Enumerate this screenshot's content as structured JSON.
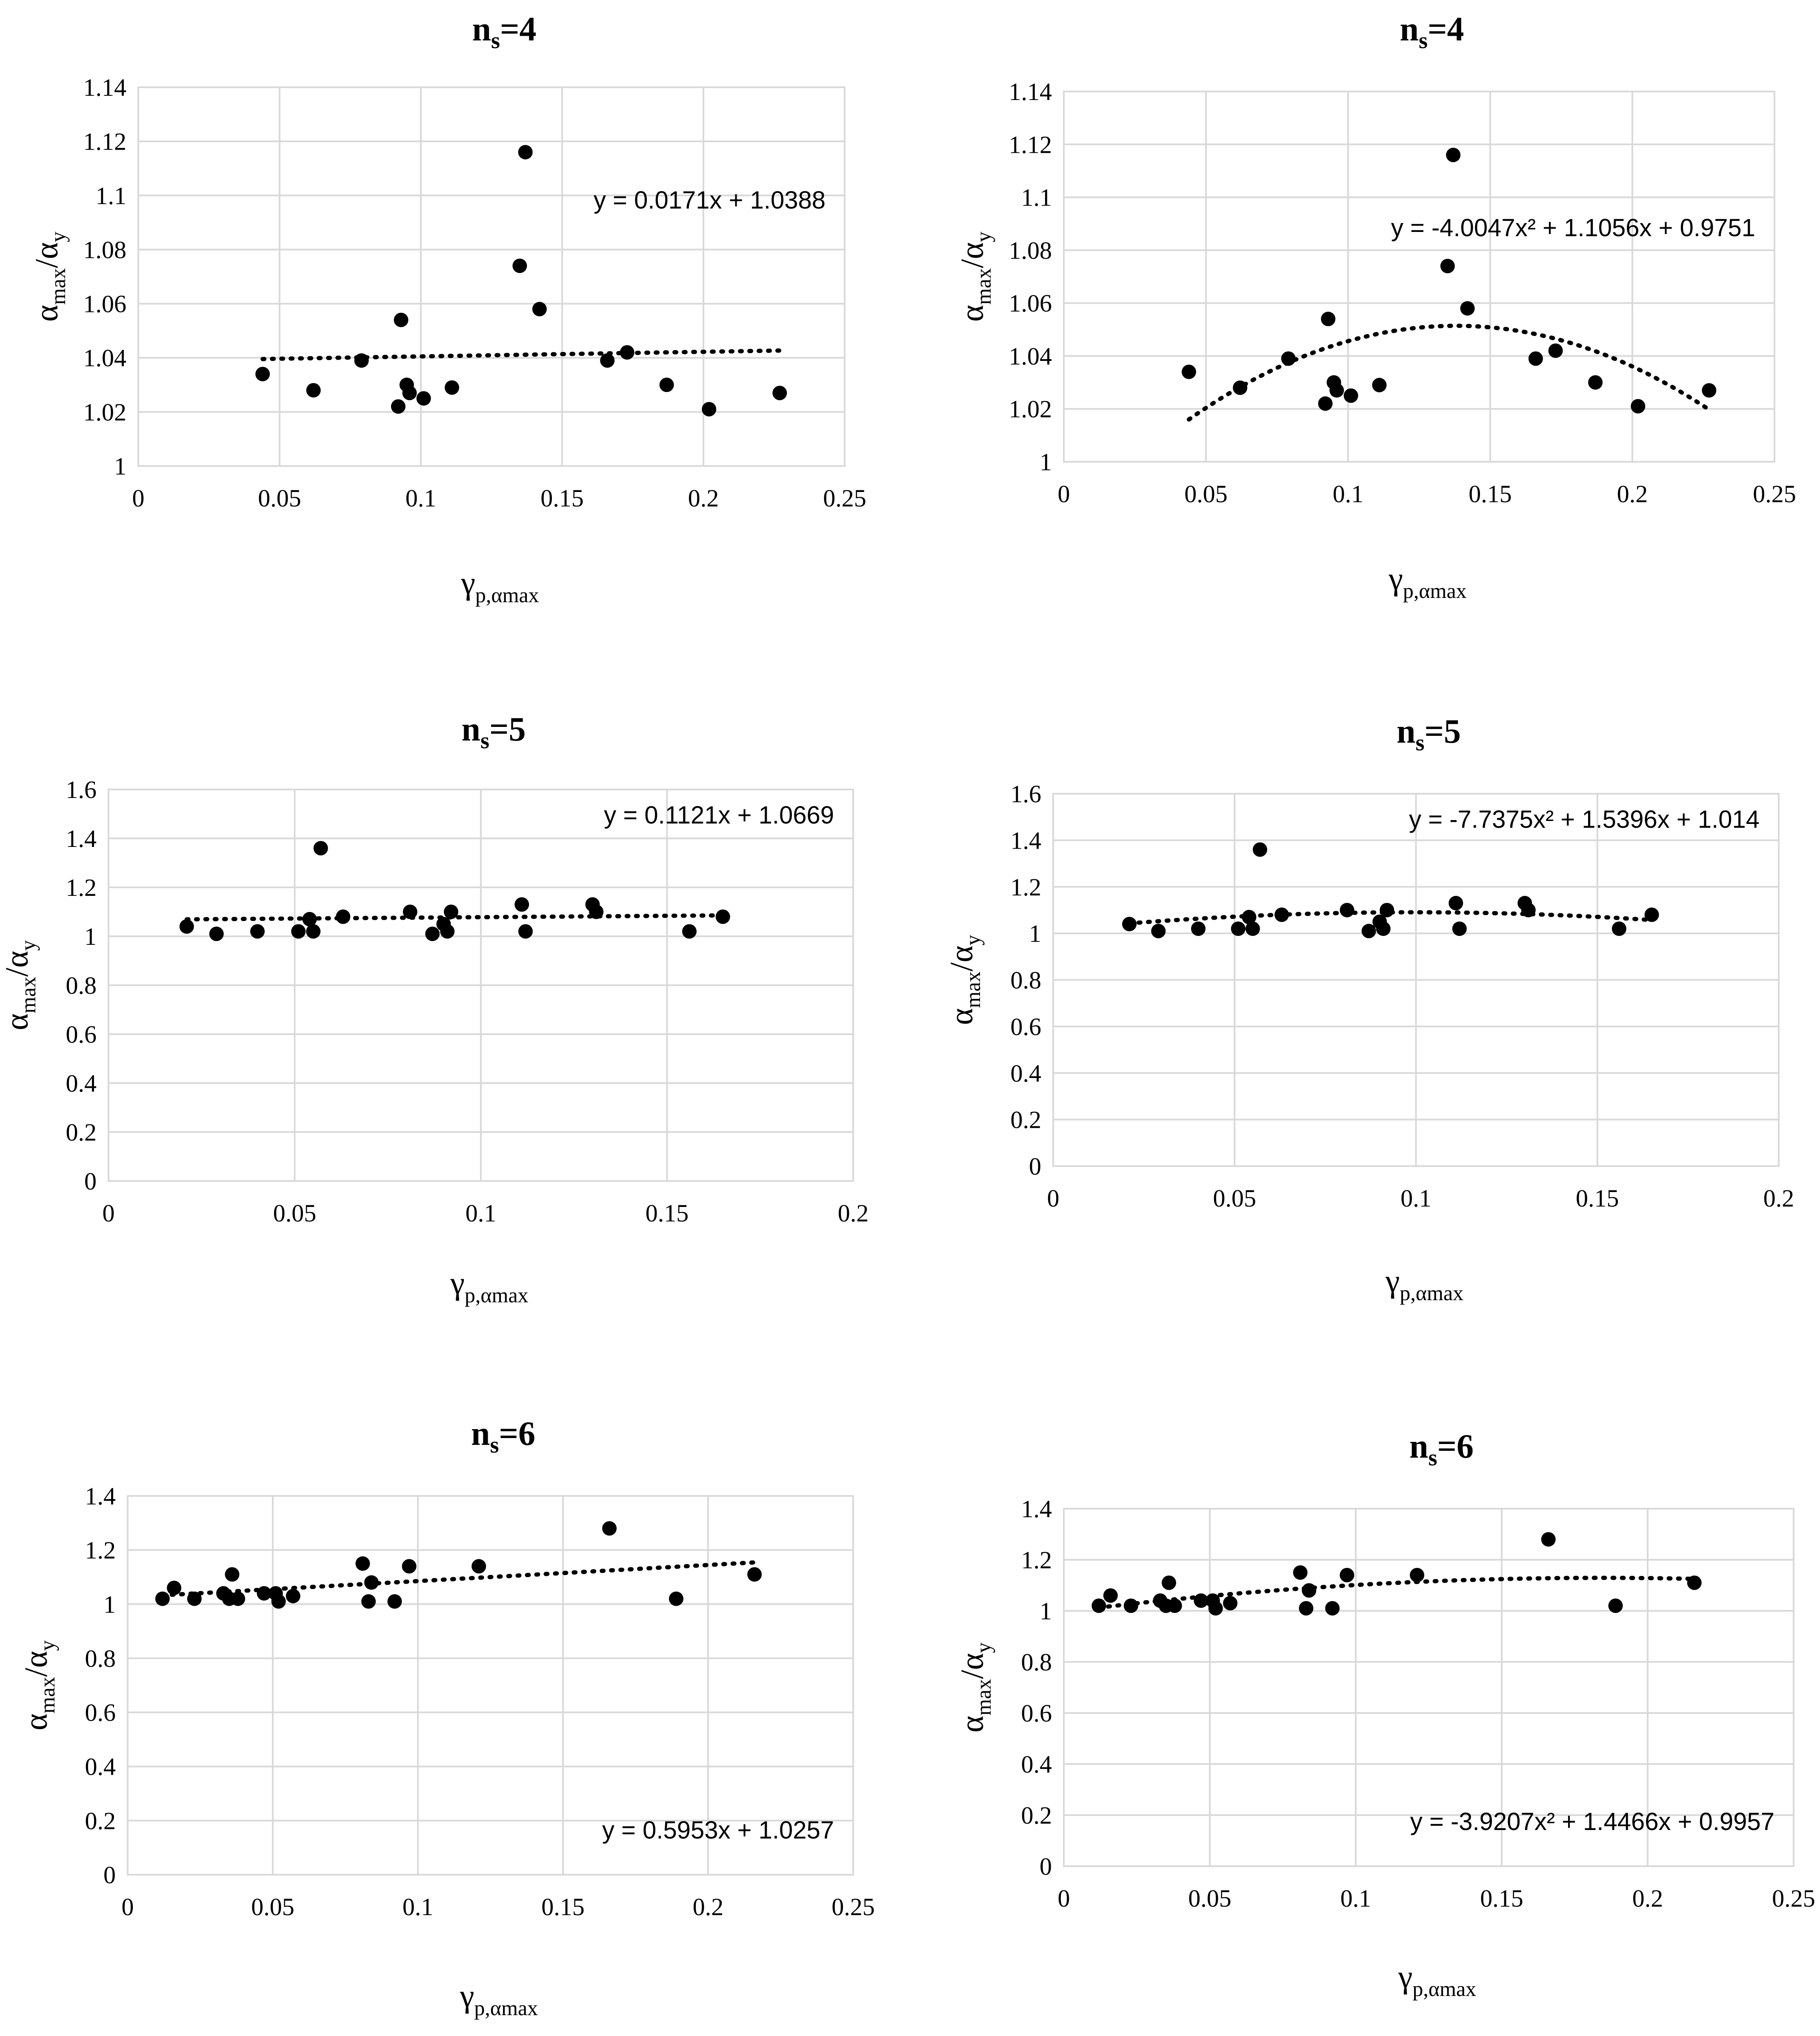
{
  "chart_data": [
    {
      "type": "scatter",
      "title_main": "n",
      "title_sub": "s",
      "title_rest": "=4",
      "ylabel_a": "α",
      "ylabel_a_sub": "max",
      "ylabel_sep": "/α",
      "ylabel_b_sub": "y",
      "xlabel_main": "γ",
      "xlabel_sub": "p,αmax",
      "xlim": [
        0,
        0.25
      ],
      "ylim": [
        1,
        1.14
      ],
      "xticks": [
        0,
        0.05,
        0.1,
        0.15,
        0.2,
        0.25
      ],
      "xtick_labels": [
        "0",
        "0.05",
        "0.1",
        "0.15",
        "0.2",
        "0.25"
      ],
      "yticks": [
        1,
        1.02,
        1.04,
        1.06,
        1.08,
        1.1,
        1.12,
        1.14
      ],
      "ytick_labels": [
        "1",
        "1.02",
        "1.04",
        "1.06",
        "1.08",
        "1.1",
        "1.12",
        "1.14"
      ],
      "trend": {
        "type": "linear",
        "coeffs": [
          0.0171,
          1.0388
        ],
        "range": [
          0.044,
          0.227
        ]
      },
      "equation": "y = 0.0171x + 1.0388",
      "equation_pos": "top-right",
      "x": [
        0.044,
        0.062,
        0.079,
        0.092,
        0.093,
        0.095,
        0.096,
        0.101,
        0.111,
        0.135,
        0.137,
        0.142,
        0.166,
        0.173,
        0.187,
        0.202,
        0.227
      ],
      "y": [
        1.034,
        1.028,
        1.039,
        1.022,
        1.054,
        1.03,
        1.027,
        1.025,
        1.029,
        1.074,
        1.116,
        1.058,
        1.039,
        1.042,
        1.03,
        1.021,
        1.027
      ]
    },
    {
      "type": "scatter",
      "title_main": "n",
      "title_sub": "s",
      "title_rest": "=4",
      "ylabel_a": "α",
      "ylabel_a_sub": "max",
      "ylabel_sep": "/α",
      "ylabel_b_sub": "y",
      "xlabel_main": "γ",
      "xlabel_sub": "p,αmax",
      "xlim": [
        0,
        0.25
      ],
      "ylim": [
        1,
        1.14
      ],
      "xticks": [
        0,
        0.05,
        0.1,
        0.15,
        0.2,
        0.25
      ],
      "xtick_labels": [
        "0",
        "0.05",
        "0.1",
        "0.15",
        "0.2",
        "0.25"
      ],
      "yticks": [
        1,
        1.02,
        1.04,
        1.06,
        1.08,
        1.1,
        1.12,
        1.14
      ],
      "ytick_labels": [
        "1",
        "1.02",
        "1.04",
        "1.06",
        "1.08",
        "1.1",
        "1.12",
        "1.14"
      ],
      "trend": {
        "type": "poly2",
        "coeffs": [
          -4.0047,
          1.1056,
          0.9751
        ],
        "range": [
          0.044,
          0.227
        ]
      },
      "equation": "y = -4.0047x² + 1.1056x + 0.9751",
      "equation_pos": "top-right",
      "x": [
        0.044,
        0.062,
        0.079,
        0.092,
        0.093,
        0.095,
        0.096,
        0.101,
        0.111,
        0.135,
        0.137,
        0.142,
        0.166,
        0.173,
        0.187,
        0.202,
        0.227
      ],
      "y": [
        1.034,
        1.028,
        1.039,
        1.022,
        1.054,
        1.03,
        1.027,
        1.025,
        1.029,
        1.074,
        1.116,
        1.058,
        1.039,
        1.042,
        1.03,
        1.021,
        1.027
      ]
    },
    {
      "type": "scatter",
      "title_main": "n",
      "title_sub": "s",
      "title_rest": "=5",
      "ylabel_a": "α",
      "ylabel_a_sub": "max",
      "ylabel_sep": "/α",
      "ylabel_b_sub": "y",
      "xlabel_main": "γ",
      "xlabel_sub": "p,αmax",
      "xlim": [
        0,
        0.2
      ],
      "ylim": [
        0,
        1.6
      ],
      "xticks": [
        0,
        0.05,
        0.1,
        0.15,
        0.2
      ],
      "xtick_labels": [
        "0",
        "0.05",
        "0.1",
        "0.15",
        "0.2"
      ],
      "yticks": [
        0,
        0.2,
        0.4,
        0.6,
        0.8,
        1,
        1.2,
        1.4,
        1.6
      ],
      "ytick_labels": [
        "0",
        "0.2",
        "0.4",
        "0.6",
        "0.8",
        "1",
        "1.2",
        "1.4",
        "1.6"
      ],
      "trend": {
        "type": "linear",
        "coeffs": [
          0.1121,
          1.0669
        ],
        "range": [
          0.021,
          0.165
        ]
      },
      "equation": "y = 0.1121x + 1.0669",
      "equation_pos": "top-right",
      "x": [
        0.021,
        0.029,
        0.04,
        0.051,
        0.054,
        0.055,
        0.057,
        0.063,
        0.081,
        0.087,
        0.09,
        0.091,
        0.092,
        0.111,
        0.112,
        0.13,
        0.131,
        0.156,
        0.165
      ],
      "y": [
        1.04,
        1.01,
        1.02,
        1.02,
        1.07,
        1.02,
        1.36,
        1.08,
        1.1,
        1.01,
        1.05,
        1.02,
        1.1,
        1.13,
        1.02,
        1.13,
        1.1,
        1.02,
        1.08
      ]
    },
    {
      "type": "scatter",
      "title_main": "n",
      "title_sub": "s",
      "title_rest": "=5",
      "ylabel_a": "α",
      "ylabel_a_sub": "max",
      "ylabel_sep": "/α",
      "ylabel_b_sub": "y",
      "xlabel_main": "γ",
      "xlabel_sub": "p,αmax",
      "xlim": [
        0,
        0.2
      ],
      "ylim": [
        0,
        1.6
      ],
      "xticks": [
        0,
        0.05,
        0.1,
        0.15,
        0.2
      ],
      "xtick_labels": [
        "0",
        "0.05",
        "0.1",
        "0.15",
        "0.2"
      ],
      "yticks": [
        0,
        0.2,
        0.4,
        0.6,
        0.8,
        1,
        1.2,
        1.4,
        1.6
      ],
      "ytick_labels": [
        "0",
        "0.2",
        "0.4",
        "0.6",
        "0.8",
        "1",
        "1.2",
        "1.4",
        "1.6"
      ],
      "trend": {
        "type": "poly2",
        "coeffs": [
          -7.7375,
          1.5396,
          1.014
        ],
        "range": [
          0.021,
          0.165
        ]
      },
      "equation": "y = -7.7375x² + 1.5396x + 1.014",
      "equation_pos": "top-right",
      "x": [
        0.021,
        0.029,
        0.04,
        0.051,
        0.054,
        0.055,
        0.057,
        0.063,
        0.081,
        0.087,
        0.09,
        0.091,
        0.092,
        0.111,
        0.112,
        0.13,
        0.131,
        0.156,
        0.165
      ],
      "y": [
        1.04,
        1.01,
        1.02,
        1.02,
        1.07,
        1.02,
        1.36,
        1.08,
        1.1,
        1.01,
        1.05,
        1.02,
        1.1,
        1.13,
        1.02,
        1.13,
        1.1,
        1.02,
        1.08
      ]
    },
    {
      "type": "scatter",
      "title_main": "n",
      "title_sub": "s",
      "title_rest": "=6",
      "ylabel_a": "α",
      "ylabel_a_sub": "max",
      "ylabel_sep": "/α",
      "ylabel_b_sub": "y",
      "xlabel_main": "γ",
      "xlabel_sub": "p,αmax",
      "xlim": [
        0,
        0.25
      ],
      "ylim": [
        0,
        1.4
      ],
      "xticks": [
        0,
        0.05,
        0.1,
        0.15,
        0.2,
        0.25
      ],
      "xtick_labels": [
        "0",
        "0.05",
        "0.1",
        "0.15",
        "0.2",
        "0.25"
      ],
      "yticks": [
        0,
        0.2,
        0.4,
        0.6,
        0.8,
        1,
        1.2,
        1.4
      ],
      "ytick_labels": [
        "0",
        "0.2",
        "0.4",
        "0.6",
        "0.8",
        "1",
        "1.2",
        "1.4"
      ],
      "trend": {
        "type": "linear",
        "coeffs": [
          0.5953,
          1.0257
        ],
        "range": [
          0.012,
          0.216
        ]
      },
      "equation": "y = 0.5953x + 1.0257",
      "equation_pos": "bottom-right",
      "x": [
        0.012,
        0.016,
        0.023,
        0.033,
        0.035,
        0.036,
        0.038,
        0.047,
        0.051,
        0.052,
        0.057,
        0.081,
        0.083,
        0.084,
        0.092,
        0.097,
        0.121,
        0.166,
        0.189,
        0.216
      ],
      "y": [
        1.02,
        1.06,
        1.02,
        1.04,
        1.02,
        1.11,
        1.02,
        1.04,
        1.04,
        1.01,
        1.03,
        1.15,
        1.01,
        1.08,
        1.01,
        1.14,
        1.14,
        1.28,
        1.02,
        1.11
      ]
    },
    {
      "type": "scatter",
      "title_main": "n",
      "title_sub": "s",
      "title_rest": "=6",
      "ylabel_a": "α",
      "ylabel_a_sub": "max",
      "ylabel_sep": "/α",
      "ylabel_b_sub": "y",
      "xlabel_main": "γ",
      "xlabel_sub": "p,αmax",
      "xlim": [
        0,
        0.25
      ],
      "ylim": [
        0,
        1.4
      ],
      "xticks": [
        0,
        0.05,
        0.1,
        0.15,
        0.2,
        0.25
      ],
      "xtick_labels": [
        "0",
        "0.05",
        "0.1",
        "0.15",
        "0.2",
        "0.25"
      ],
      "yticks": [
        0,
        0.2,
        0.4,
        0.6,
        0.8,
        1,
        1.2,
        1.4
      ],
      "ytick_labels": [
        "0",
        "0.2",
        "0.4",
        "0.6",
        "0.8",
        "1",
        "1.2",
        "1.4"
      ],
      "trend": {
        "type": "poly2",
        "coeffs": [
          -3.9207,
          1.4466,
          0.9957
        ],
        "range": [
          0.012,
          0.216
        ]
      },
      "equation": "y = -3.9207x² + 1.4466x + 0.9957",
      "equation_pos": "bottom-right",
      "x": [
        0.012,
        0.016,
        0.023,
        0.033,
        0.035,
        0.036,
        0.038,
        0.047,
        0.051,
        0.052,
        0.057,
        0.081,
        0.083,
        0.084,
        0.092,
        0.097,
        0.121,
        0.166,
        0.189,
        0.216
      ],
      "y": [
        1.02,
        1.06,
        1.02,
        1.04,
        1.02,
        1.11,
        1.02,
        1.04,
        1.04,
        1.01,
        1.03,
        1.15,
        1.01,
        1.08,
        1.01,
        1.14,
        1.14,
        1.28,
        1.02,
        1.11
      ]
    }
  ]
}
